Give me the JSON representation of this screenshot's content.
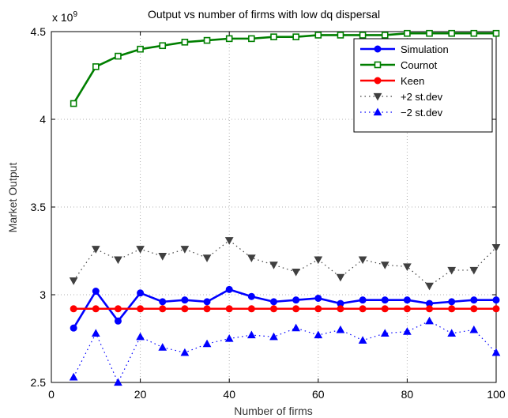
{
  "chart_data": {
    "type": "line",
    "title": "Output vs number of firms with low dq dispersal",
    "xlabel": "Number of firms",
    "ylabel": "Market Output",
    "y_exponent_label": "x 10",
    "y_exponent_power": "9",
    "xlim": [
      0,
      100
    ],
    "ylim": [
      2.5,
      4.5
    ],
    "x_ticks": [
      "0",
      "20",
      "40",
      "60",
      "80",
      "100"
    ],
    "y_ticks": [
      "2.5",
      "3",
      "3.5",
      "4",
      "4.5"
    ],
    "grid": true,
    "legend_position": "top-right",
    "x": [
      5,
      10,
      15,
      20,
      25,
      30,
      35,
      40,
      45,
      50,
      55,
      60,
      65,
      70,
      75,
      80,
      85,
      90,
      95,
      100
    ],
    "series": [
      {
        "name": "Simulation",
        "color": "#0000ff",
        "marker": "circle",
        "line": "solid",
        "values": [
          2.81,
          3.02,
          2.85,
          3.01,
          2.96,
          2.97,
          2.96,
          3.03,
          2.99,
          2.96,
          2.97,
          2.98,
          2.95,
          2.97,
          2.97,
          2.97,
          2.95,
          2.96,
          2.97,
          2.97
        ]
      },
      {
        "name": "Cournot",
        "color": "#007f00",
        "marker": "square",
        "line": "solid",
        "values": [
          4.09,
          4.3,
          4.36,
          4.4,
          4.42,
          4.44,
          4.45,
          4.46,
          4.46,
          4.47,
          4.47,
          4.48,
          4.48,
          4.48,
          4.48,
          4.49,
          4.49,
          4.49,
          4.49,
          4.49
        ]
      },
      {
        "name": "Keen",
        "color": "#ff0000",
        "marker": "circle",
        "line": "solid",
        "values": [
          2.92,
          2.92,
          2.92,
          2.92,
          2.92,
          2.92,
          2.92,
          2.92,
          2.92,
          2.92,
          2.92,
          2.92,
          2.92,
          2.92,
          2.92,
          2.92,
          2.92,
          2.92,
          2.92,
          2.92
        ]
      },
      {
        "name": "+2 st.dev",
        "color": "#404040",
        "marker": "triangle-down",
        "line": "dotted",
        "values": [
          3.08,
          3.26,
          3.2,
          3.26,
          3.22,
          3.26,
          3.21,
          3.31,
          3.21,
          3.17,
          3.13,
          3.2,
          3.1,
          3.2,
          3.17,
          3.16,
          3.05,
          3.14,
          3.14,
          3.27
        ]
      },
      {
        "name": "−2 st.dev",
        "color": "#0000ff",
        "marker": "triangle-up",
        "line": "dotted",
        "values": [
          2.53,
          2.78,
          2.5,
          2.76,
          2.7,
          2.67,
          2.72,
          2.75,
          2.77,
          2.76,
          2.81,
          2.77,
          2.8,
          2.74,
          2.78,
          2.79,
          2.85,
          2.78,
          2.8,
          2.67
        ]
      }
    ]
  }
}
